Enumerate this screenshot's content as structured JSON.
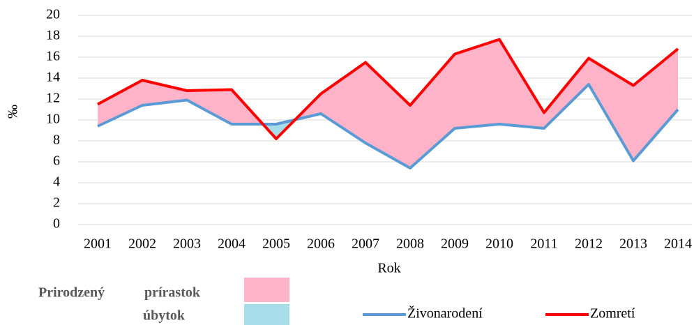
{
  "chart_data": {
    "type": "line",
    "xlabel": "Rok",
    "ylabel": "‰",
    "categories": [
      "2001",
      "2002",
      "2003",
      "2004",
      "2005",
      "2006",
      "2007",
      "2008",
      "2009",
      "2010",
      "2011",
      "2012",
      "2013",
      "2014"
    ],
    "series": [
      {
        "name": "Živonarodení",
        "color": "#5b9bd5",
        "values": [
          9.4,
          11.4,
          11.9,
          9.6,
          9.6,
          10.6,
          7.8,
          5.4,
          9.2,
          9.6,
          9.2,
          13.4,
          6.1,
          11.0
        ]
      },
      {
        "name": "Zomretí",
        "color": "#ff0000",
        "values": [
          11.5,
          13.8,
          12.8,
          12.9,
          8.2,
          12.5,
          15.5,
          11.4,
          16.3,
          17.7,
          10.7,
          15.9,
          13.3,
          16.8
        ]
      }
    ],
    "ylim": [
      0,
      20
    ],
    "yticks": [
      0,
      2,
      4,
      6,
      8,
      10,
      12,
      14,
      16,
      18,
      20
    ],
    "grid": true,
    "fill_legend": {
      "title": "Prirodzený",
      "items": [
        {
          "label": "prírastok",
          "color": "#ffb3c8"
        },
        {
          "label": "úbytok",
          "color": "#a6dde8"
        }
      ]
    }
  }
}
